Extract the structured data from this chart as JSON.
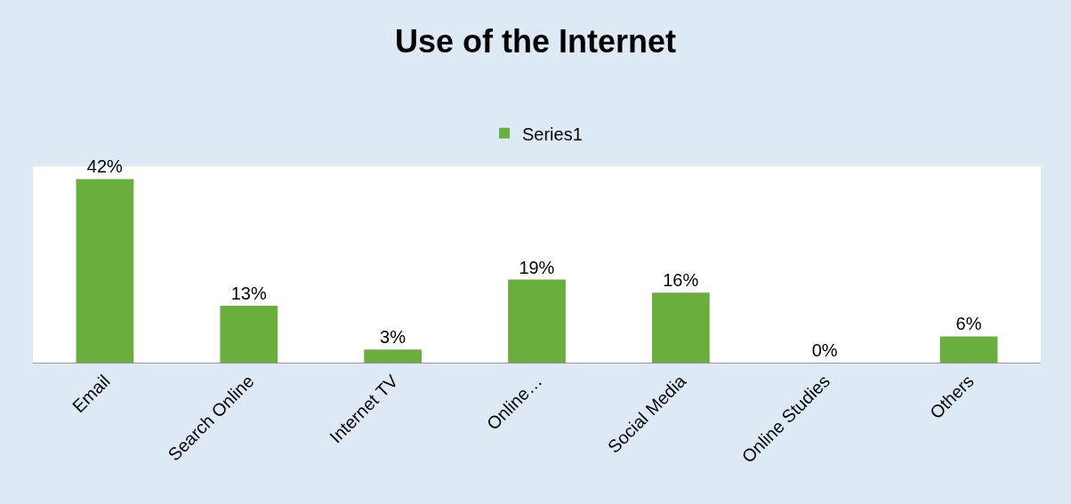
{
  "chart_data": {
    "type": "bar",
    "title": "Use of the Internet",
    "categories": [
      "Email",
      "Search Online",
      "Internet TV",
      "Online…",
      "Social Media",
      "Online Studies",
      "Others"
    ],
    "series": [
      {
        "name": "Series1",
        "color": "#6aae3e",
        "values": [
          42,
          13,
          3,
          19,
          16,
          0,
          6
        ],
        "value_labels": [
          "42%",
          "13%",
          "3%",
          "19%",
          "16%",
          "0%",
          "6%"
        ]
      }
    ],
    "legend": "top",
    "grid": false
  }
}
